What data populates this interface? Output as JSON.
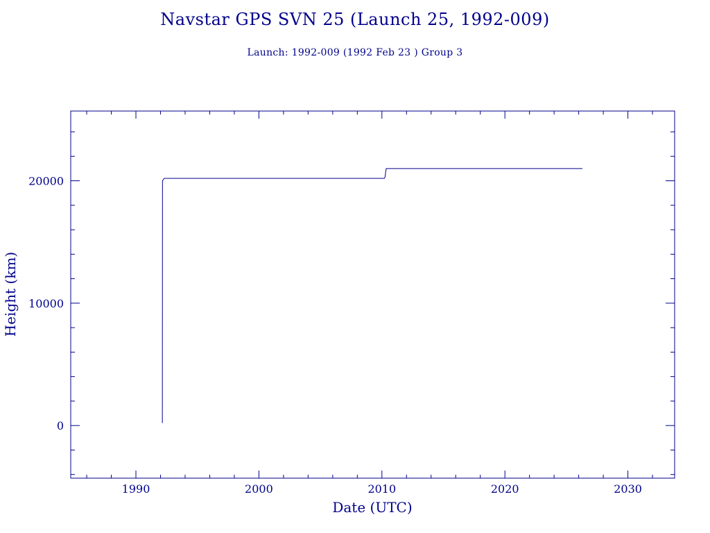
{
  "title": "Navstar GPS SVN 25 (Launch 25, 1992-009)",
  "subtitle": "Launch: 1992-009  (1992 Feb 23 )  Group 3",
  "colors": {
    "axis": "#00008b",
    "text": "#00008b",
    "line": "#00008b",
    "background": "#ffffff"
  },
  "chart_data": {
    "type": "line",
    "title": "Navstar GPS SVN 25 (Launch 25, 1992-009)",
    "subtitle": "Launch: 1992-009  (1992 Feb 23 )  Group 3",
    "xlabel": "Date (UTC)",
    "ylabel": "Height (km)",
    "xlim": [
      1984.7,
      2033.8
    ],
    "ylim": [
      -4300,
      25700
    ],
    "x_major_ticks": [
      1990,
      2000,
      2010,
      2020,
      2030
    ],
    "x_tick_labels": [
      "1990",
      "2000",
      "2010",
      "2020",
      "2030"
    ],
    "x_minor_step": 2,
    "y_major_ticks": [
      0,
      10000,
      20000
    ],
    "y_tick_labels": [
      "0",
      "10000",
      "20000"
    ],
    "y_minor_step": 2000,
    "grid": false,
    "legend": "none",
    "series": [
      {
        "x": [
          1992.15,
          1992.16,
          1992.3,
          2010.2,
          2010.25,
          2010.35,
          2026.3
        ],
        "y": [
          200,
          20000,
          20200,
          20200,
          20300,
          21000,
          21000
        ]
      }
    ]
  }
}
